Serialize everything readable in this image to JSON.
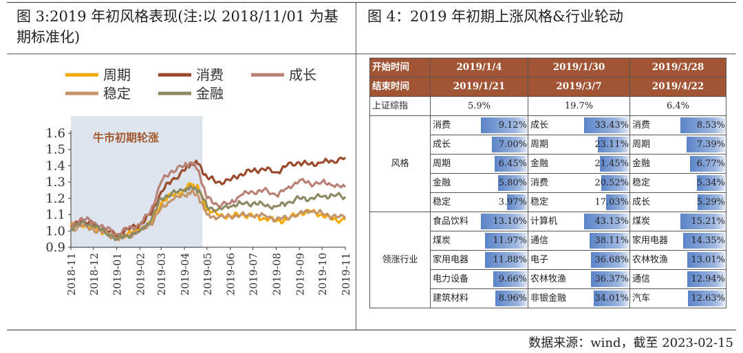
{
  "left_title": "图 3:2019 年初风格表现(注:以 2018/11/01 为基期标准化)",
  "right_title": "图 4：2019 年初期上涨风格&行业轮动",
  "footer": "数据来源：wind，截至 2023-02-15",
  "colors": {
    "周期": "#f5a800",
    "消费": "#9c4a2c",
    "成长": "#b98175",
    "稳定": "#c4956a",
    "金融": "#8c8a64",
    "shade": "#dde4ee",
    "table_header": "#a25535"
  },
  "chart_data": {
    "type": "line",
    "title": "",
    "xlabel": "",
    "ylabel": "",
    "ylim": [
      0.9,
      1.6
    ],
    "yticks": [
      "0.9",
      "1.0",
      "1.1",
      "1.2",
      "1.3",
      "1.4",
      "1.5",
      "1.6"
    ],
    "xticks": [
      "2018-11",
      "2018-12",
      "2019-01",
      "2019-02",
      "2019-03",
      "2019-04",
      "2019-05",
      "2019-06",
      "2019-07",
      "2019-08",
      "2019-09",
      "2019-10",
      "2019-11"
    ],
    "legend": [
      "周期",
      "消费",
      "成长",
      "稳定",
      "金融"
    ],
    "legend_position": "top",
    "shaded_region": {
      "from": "2018-11",
      "to": "2019-04-25",
      "label": "牛市初期轮涨"
    },
    "x": [
      "2018-11-01",
      "2018-11-15",
      "2018-12-01",
      "2018-12-15",
      "2019-01-02",
      "2019-01-15",
      "2019-02-01",
      "2019-02-15",
      "2019-03-01",
      "2019-03-15",
      "2019-04-01",
      "2019-04-10",
      "2019-04-20",
      "2019-05-01",
      "2019-05-15",
      "2019-06-01",
      "2019-06-15",
      "2019-07-01",
      "2019-07-15",
      "2019-08-01",
      "2019-08-15",
      "2019-09-01",
      "2019-09-15",
      "2019-10-01",
      "2019-10-15",
      "2019-11-01"
    ],
    "series": [
      {
        "name": "周期",
        "values": [
          1.03,
          1.04,
          1.02,
          0.99,
          0.96,
          0.98,
          1.01,
          1.05,
          1.17,
          1.22,
          1.25,
          1.29,
          1.26,
          1.13,
          1.1,
          1.09,
          1.1,
          1.09,
          1.08,
          1.06,
          1.07,
          1.11,
          1.12,
          1.1,
          1.07,
          1.07
        ]
      },
      {
        "name": "消费",
        "values": [
          1.03,
          1.06,
          1.04,
          1.01,
          0.97,
          1.01,
          1.04,
          1.1,
          1.24,
          1.31,
          1.37,
          1.42,
          1.41,
          1.33,
          1.3,
          1.31,
          1.35,
          1.37,
          1.38,
          1.36,
          1.4,
          1.42,
          1.41,
          1.42,
          1.43,
          1.45
        ]
      },
      {
        "name": "成长",
        "values": [
          1.02,
          1.08,
          1.05,
          1.02,
          0.98,
          1.01,
          1.04,
          1.12,
          1.3,
          1.37,
          1.4,
          1.42,
          1.37,
          1.2,
          1.16,
          1.17,
          1.22,
          1.24,
          1.25,
          1.22,
          1.26,
          1.31,
          1.29,
          1.3,
          1.28,
          1.27
        ]
      },
      {
        "name": "稳定",
        "values": [
          1.01,
          1.03,
          1.01,
          0.99,
          0.95,
          0.97,
          1.0,
          1.04,
          1.14,
          1.19,
          1.22,
          1.24,
          1.21,
          1.1,
          1.08,
          1.09,
          1.1,
          1.09,
          1.1,
          1.07,
          1.08,
          1.11,
          1.12,
          1.11,
          1.09,
          1.08
        ]
      },
      {
        "name": "金融",
        "values": [
          1.02,
          1.05,
          1.03,
          1.0,
          0.95,
          0.97,
          1.0,
          1.06,
          1.2,
          1.23,
          1.25,
          1.27,
          1.25,
          1.15,
          1.13,
          1.15,
          1.17,
          1.17,
          1.16,
          1.15,
          1.17,
          1.2,
          1.2,
          1.21,
          1.22,
          1.21
        ]
      }
    ]
  },
  "table": {
    "start_label": "开始时间",
    "end_label": "结束时间",
    "index_label": "上证综指",
    "style_label": "风格",
    "industry_label": "领涨行业",
    "periods": [
      {
        "start": "2019/1/4",
        "end": "2019/1/21",
        "index": "5.9%",
        "styles": [
          {
            "name": "消费",
            "value": "9.12%",
            "pct": 9.12
          },
          {
            "name": "成长",
            "value": "7.00%",
            "pct": 7.0
          },
          {
            "name": "周期",
            "value": "6.45%",
            "pct": 6.45
          },
          {
            "name": "金融",
            "value": "5.80%",
            "pct": 5.8
          },
          {
            "name": "稳定",
            "value": "3.97%",
            "pct": 3.97
          }
        ],
        "industries": [
          {
            "name": "食品饮料",
            "value": "13.10%",
            "pct": 13.1
          },
          {
            "name": "煤炭",
            "value": "11.97%",
            "pct": 11.97
          },
          {
            "name": "家用电器",
            "value": "11.88%",
            "pct": 11.88
          },
          {
            "name": "电力设备",
            "value": "9.66%",
            "pct": 9.66
          },
          {
            "name": "建筑材料",
            "value": "8.96%",
            "pct": 8.96
          }
        ]
      },
      {
        "start": "2019/1/30",
        "end": "2019/3/7",
        "index": "19.7%",
        "styles": [
          {
            "name": "成长",
            "value": "33.43%",
            "pct": 33.43
          },
          {
            "name": "周期",
            "value": "23.11%",
            "pct": 23.11
          },
          {
            "name": "金融",
            "value": "21.45%",
            "pct": 21.45
          },
          {
            "name": "消费",
            "value": "20.52%",
            "pct": 20.52
          },
          {
            "name": "稳定",
            "value": "17.03%",
            "pct": 17.03
          }
        ],
        "industries": [
          {
            "name": "计算机",
            "value": "43.13%",
            "pct": 43.13
          },
          {
            "name": "通信",
            "value": "38.11%",
            "pct": 38.11
          },
          {
            "name": "电子",
            "value": "36.68%",
            "pct": 36.68
          },
          {
            "name": "农林牧渔",
            "value": "36.37%",
            "pct": 36.37
          },
          {
            "name": "非银金融",
            "value": "34.01%",
            "pct": 34.01
          }
        ]
      },
      {
        "start": "2019/3/28",
        "end": "2019/4/22",
        "index": "6.4%",
        "styles": [
          {
            "name": "消费",
            "value": "8.53%",
            "pct": 8.53
          },
          {
            "name": "周期",
            "value": "7.39%",
            "pct": 7.39
          },
          {
            "name": "金融",
            "value": "6.77%",
            "pct": 6.77
          },
          {
            "name": "稳定",
            "value": "5.34%",
            "pct": 5.34
          },
          {
            "name": "成长",
            "value": "5.29%",
            "pct": 5.29
          }
        ],
        "industries": [
          {
            "name": "煤炭",
            "value": "15.21%",
            "pct": 15.21
          },
          {
            "name": "家用电器",
            "value": "14.35%",
            "pct": 14.35
          },
          {
            "name": "农林牧渔",
            "value": "13.01%",
            "pct": 13.01
          },
          {
            "name": "通信",
            "value": "12.94%",
            "pct": 12.94
          },
          {
            "name": "汽车",
            "value": "12.63%",
            "pct": 12.63
          }
        ]
      }
    ]
  }
}
